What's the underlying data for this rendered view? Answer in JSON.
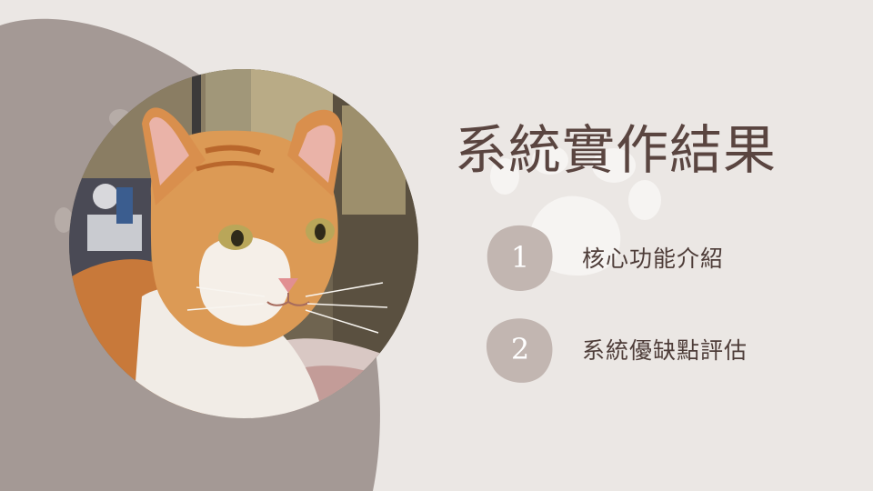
{
  "slide": {
    "title": "系統實作結果",
    "items": [
      {
        "number": "1",
        "label": "核心功能介紹"
      },
      {
        "number": "2",
        "label": "系統優缺點評估"
      }
    ]
  },
  "colors": {
    "background": "#ebe7e4",
    "left_blob": "#a49995",
    "number_badge": "#c2b6b1",
    "title_text": "#5a4540",
    "item_text": "#4e3d39",
    "paw_print": "#f6f4f2"
  },
  "image": {
    "subject": "orange-and-white cat portrait in a circular frame"
  },
  "icons": [
    "paw-print-icon"
  ]
}
